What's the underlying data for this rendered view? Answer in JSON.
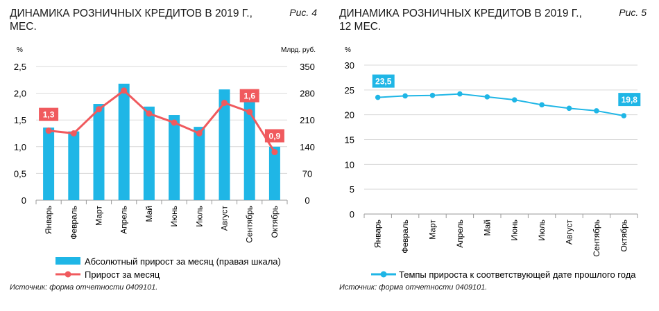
{
  "chart_data": [
    {
      "type": "bar",
      "title": "ДИНАМИКА РОЗНИЧНЫХ КРЕДИТОВ В 2019 Г., МЕС.",
      "figure_label": "Рис. 4",
      "left_unit": "%",
      "right_unit": "Млрд. руб.",
      "categories": [
        "Январь",
        "Февраль",
        "Март",
        "Апрель",
        "Май",
        "Июнь",
        "Июль",
        "Август",
        "Сентябрь",
        "Октябрь"
      ],
      "ylim_left": [
        0,
        2.5
      ],
      "yticks_left": [
        "0",
        "0,5",
        "1,0",
        "1,5",
        "2,0",
        "2,5"
      ],
      "ylim_right": [
        0,
        350
      ],
      "yticks_right": [
        "0",
        "70",
        "140",
        "210",
        "280",
        "350"
      ],
      "series": [
        {
          "name": "Абсолютный прирост за месяц (правая шкала)",
          "kind": "bar",
          "axis": "right",
          "color": "#1fb6e6",
          "values": [
            190,
            180,
            252,
            305,
            245,
            223,
            192,
            290,
            268,
            140
          ]
        },
        {
          "name": "Прирост за месяц",
          "kind": "line",
          "axis": "left",
          "color": "#f05a5e",
          "values": [
            1.3,
            1.25,
            1.7,
            2.05,
            1.62,
            1.45,
            1.25,
            1.82,
            1.65,
            0.9
          ]
        }
      ],
      "data_labels": [
        {
          "index": 0,
          "text": "1,3"
        },
        {
          "index": 8,
          "text": "1,6"
        },
        {
          "index": 9,
          "text": "0,9"
        }
      ],
      "source": "Источник: форма отчетности 0409101."
    },
    {
      "type": "line",
      "title": "ДИНАМИКА РОЗНИЧНЫХ КРЕДИТОВ В 2019 Г., 12 МЕС.",
      "figure_label": "Рис. 5",
      "unit": "%",
      "categories": [
        "Январь",
        "Февраль",
        "Март",
        "Апрель",
        "Май",
        "Июнь",
        "Июль",
        "Август",
        "Сентябрь",
        "Октябрь"
      ],
      "ylim": [
        0,
        30
      ],
      "yticks": [
        "0",
        "5",
        "10",
        "15",
        "20",
        "25",
        "30"
      ],
      "series": [
        {
          "name": "Темпы прироста к соответствующей дате прошлого года",
          "color": "#1fb6e6",
          "values": [
            23.5,
            23.8,
            23.9,
            24.2,
            23.6,
            23.0,
            22.0,
            21.3,
            20.8,
            19.8
          ]
        }
      ],
      "data_labels": [
        {
          "index": 0,
          "text": "23,5"
        },
        {
          "index": 9,
          "text": "19,8"
        }
      ],
      "source": "Источник: форма отчетности 0409101."
    }
  ]
}
